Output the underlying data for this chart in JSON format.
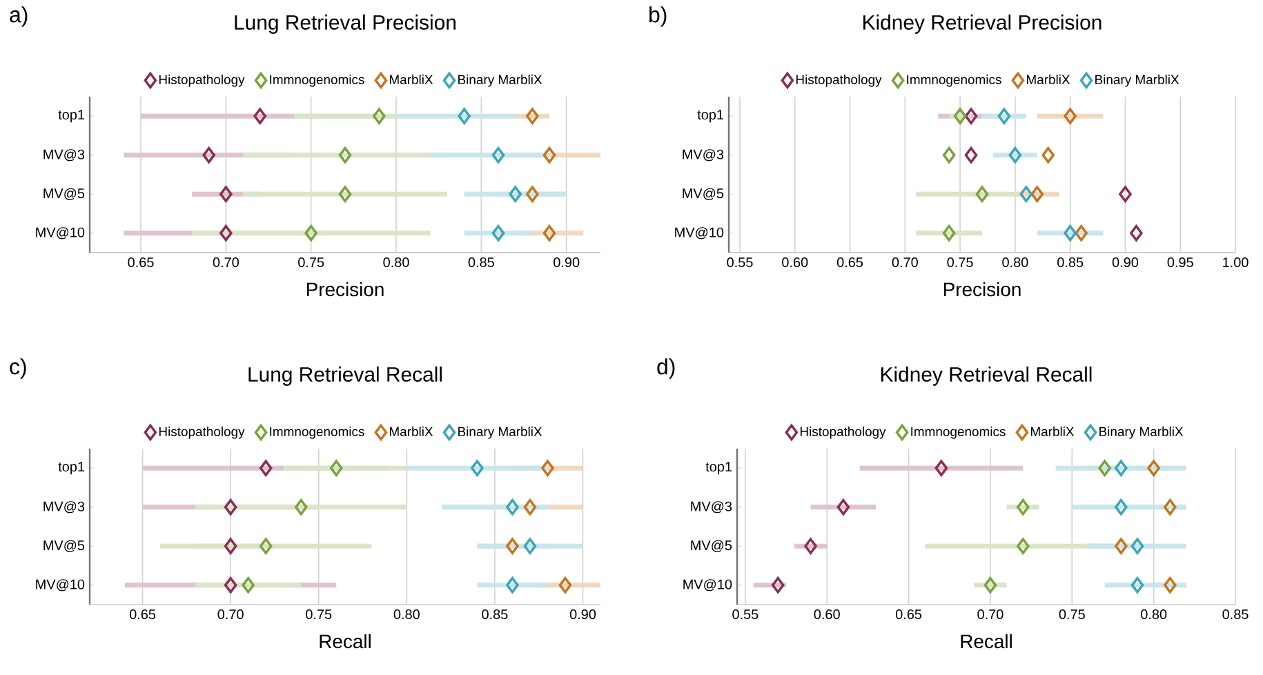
{
  "chart_data": [
    {
      "type": "scatter",
      "orientation": "horizontal",
      "title": "Lung Retrieval Precision",
      "xlabel": "Precision",
      "annotations": [
        "a)"
      ],
      "categories": [
        "top1",
        "MV@3",
        "MV@5",
        "MV@10"
      ],
      "marker": "diamond",
      "grid": "x",
      "legend": "top",
      "xlim": [
        0.62,
        0.92
      ],
      "xticks": [
        0.65,
        {
          "value": 0.7,
          "label": "0.70"
        },
        0.75,
        {
          "value": 0.8,
          "label": "0.80"
        },
        0.85,
        {
          "value": 0.9,
          "label": "0.90"
        }
      ],
      "series": [
        {
          "name": "Histopathology",
          "color": "#8b2d55",
          "values": [
            0.72,
            0.69,
            0.7,
            0.7
          ],
          "errors": [
            [
              0.65,
              0.79
            ],
            [
              0.64,
              0.74
            ],
            [
              0.68,
              0.72
            ],
            [
              0.64,
              0.76
            ]
          ]
        },
        {
          "name": "Immnogenomics",
          "color": "#7aa33a",
          "values": [
            0.79,
            0.77,
            0.77,
            0.75
          ],
          "errors": [
            [
              0.74,
              0.8
            ],
            [
              0.71,
              0.83
            ],
            [
              0.71,
              0.83
            ],
            [
              0.68,
              0.82
            ]
          ]
        },
        {
          "name": "MarbliX",
          "color": "#c8741e",
          "values": [
            0.88,
            0.89,
            0.88,
            0.89
          ],
          "errors": [
            [
              0.87,
              0.89
            ],
            [
              0.86,
              0.92
            ],
            [
              0.86,
              0.9
            ],
            [
              0.87,
              0.91
            ]
          ]
        },
        {
          "name": "Binary MarbliX",
          "color": "#3aa7b8",
          "values": [
            0.84,
            0.86,
            0.87,
            0.86
          ],
          "errors": [
            [
              0.8,
              0.87
            ],
            [
              0.82,
              0.89
            ],
            [
              0.84,
              0.9
            ],
            [
              0.84,
              0.88
            ]
          ]
        }
      ]
    },
    {
      "type": "scatter",
      "orientation": "horizontal",
      "title": "Kidney Retrieval Precision",
      "xlabel": "Precision",
      "annotations": [
        "b)"
      ],
      "categories": [
        "top1",
        "MV@3",
        "MV@5",
        "MV@10"
      ],
      "marker": "diamond",
      "grid": "x",
      "legend": "top",
      "xlim": [
        0.54,
        1.0
      ],
      "xticks": [
        0.55,
        {
          "value": 0.6,
          "label": "0.60"
        },
        0.65,
        {
          "value": 0.7,
          "label": "0.70"
        },
        0.75,
        {
          "value": 0.8,
          "label": "0.80"
        },
        0.85,
        {
          "value": 0.9,
          "label": "0.90"
        },
        0.95,
        {
          "value": 1.0,
          "label": "1.00"
        }
      ],
      "series": [
        {
          "name": "Histopathology",
          "color": "#8b2d55",
          "values": [
            0.76,
            0.76,
            0.9,
            0.91
          ],
          "errors": [
            [
              0.73,
              0.78
            ],
            null,
            null,
            null
          ]
        },
        {
          "name": "Immnogenomics",
          "color": "#7aa33a",
          "values": [
            0.75,
            0.74,
            0.77,
            0.74
          ],
          "errors": [
            [
              0.74,
              0.76
            ],
            null,
            [
              0.71,
              0.81
            ],
            [
              0.71,
              0.77
            ]
          ]
        },
        {
          "name": "MarbliX",
          "color": "#c8741e",
          "values": [
            0.85,
            0.83,
            0.82,
            0.86
          ],
          "errors": [
            [
              0.82,
              0.88
            ],
            null,
            [
              0.8,
              0.84
            ],
            [
              0.85,
              0.87
            ]
          ]
        },
        {
          "name": "Binary MarbliX",
          "color": "#3aa7b8",
          "values": [
            0.79,
            0.8,
            0.81,
            0.85
          ],
          "errors": [
            [
              0.77,
              0.81
            ],
            [
              0.78,
              0.82
            ],
            null,
            [
              0.82,
              0.88
            ]
          ]
        }
      ]
    },
    {
      "type": "scatter",
      "orientation": "horizontal",
      "title": "Lung Retrieval Recall",
      "xlabel": "Recall",
      "annotations": [
        "c)"
      ],
      "categories": [
        "top1",
        "MV@3",
        "MV@5",
        "MV@10"
      ],
      "marker": "diamond",
      "grid": "x",
      "legend": "top",
      "xlim": [
        0.62,
        0.91
      ],
      "xticks": [
        0.65,
        {
          "value": 0.7,
          "label": "0.70"
        },
        0.75,
        {
          "value": 0.8,
          "label": "0.80"
        },
        0.85,
        {
          "value": 0.9,
          "label": "0.90"
        }
      ],
      "series": [
        {
          "name": "Histopathology",
          "color": "#8b2d55",
          "values": [
            0.72,
            0.7,
            0.7,
            0.7
          ],
          "errors": [
            [
              0.65,
              0.79
            ],
            [
              0.65,
              0.75
            ],
            [
              0.68,
              0.72
            ],
            [
              0.64,
              0.76
            ]
          ]
        },
        {
          "name": "Immnogenomics",
          "color": "#7aa33a",
          "values": [
            0.76,
            0.74,
            0.72,
            0.71
          ],
          "errors": [
            [
              0.73,
              0.8
            ],
            [
              0.68,
              0.8
            ],
            [
              0.66,
              0.78
            ],
            [
              0.68,
              0.74
            ]
          ]
        },
        {
          "name": "MarbliX",
          "color": "#c8741e",
          "values": [
            0.88,
            0.87,
            0.86,
            0.89
          ],
          "errors": [
            [
              0.86,
              0.9
            ],
            [
              0.84,
              0.9
            ],
            [
              0.84,
              0.88
            ],
            [
              0.87,
              0.91
            ]
          ]
        },
        {
          "name": "Binary MarbliX",
          "color": "#3aa7b8",
          "values": [
            0.84,
            0.86,
            0.87,
            0.86
          ],
          "errors": [
            [
              0.8,
              0.88
            ],
            [
              0.82,
              0.88
            ],
            [
              0.84,
              0.9
            ],
            [
              0.84,
              0.88
            ]
          ]
        }
      ]
    },
    {
      "type": "scatter",
      "orientation": "horizontal",
      "title": "Kidney Retrieval Recall",
      "xlabel": "Recall",
      "annotations": [
        "d)"
      ],
      "categories": [
        "top1",
        "MV@3",
        "MV@5",
        "MV@10"
      ],
      "marker": "diamond",
      "grid": "x",
      "legend": "top",
      "xlim": [
        0.545,
        0.85
      ],
      "xticks": [
        0.55,
        {
          "value": 0.6,
          "label": "0.60"
        },
        0.65,
        {
          "value": 0.7,
          "label": "0.70"
        },
        0.75,
        {
          "value": 0.8,
          "label": "0.80"
        },
        0.85
      ],
      "series": [
        {
          "name": "Histopathology",
          "color": "#8b2d55",
          "values": [
            0.67,
            0.61,
            0.59,
            0.57
          ],
          "errors": [
            [
              0.62,
              0.72
            ],
            [
              0.59,
              0.63
            ],
            [
              0.58,
              0.6
            ],
            [
              0.555,
              0.575
            ]
          ]
        },
        {
          "name": "Immnogenomics",
          "color": "#7aa33a",
          "values": [
            0.77,
            0.72,
            0.72,
            0.7
          ],
          "errors": [
            [
              0.76,
              0.78
            ],
            [
              0.71,
              0.73
            ],
            [
              0.66,
              0.79
            ],
            [
              0.69,
              0.71
            ]
          ]
        },
        {
          "name": "MarbliX",
          "color": "#c8741e",
          "values": [
            0.8,
            0.81,
            0.78,
            0.81
          ],
          "errors": [
            [
              0.79,
              0.81
            ],
            [
              0.8,
              0.82
            ],
            [
              0.76,
              0.8
            ],
            [
              0.8,
              0.82
            ]
          ]
        },
        {
          "name": "Binary MarbliX",
          "color": "#3aa7b8",
          "values": [
            0.78,
            0.78,
            0.79,
            0.79
          ],
          "errors": [
            [
              0.74,
              0.82
            ],
            [
              0.75,
              0.82
            ],
            [
              0.76,
              0.82
            ],
            [
              0.77,
              0.82
            ]
          ]
        }
      ]
    }
  ]
}
